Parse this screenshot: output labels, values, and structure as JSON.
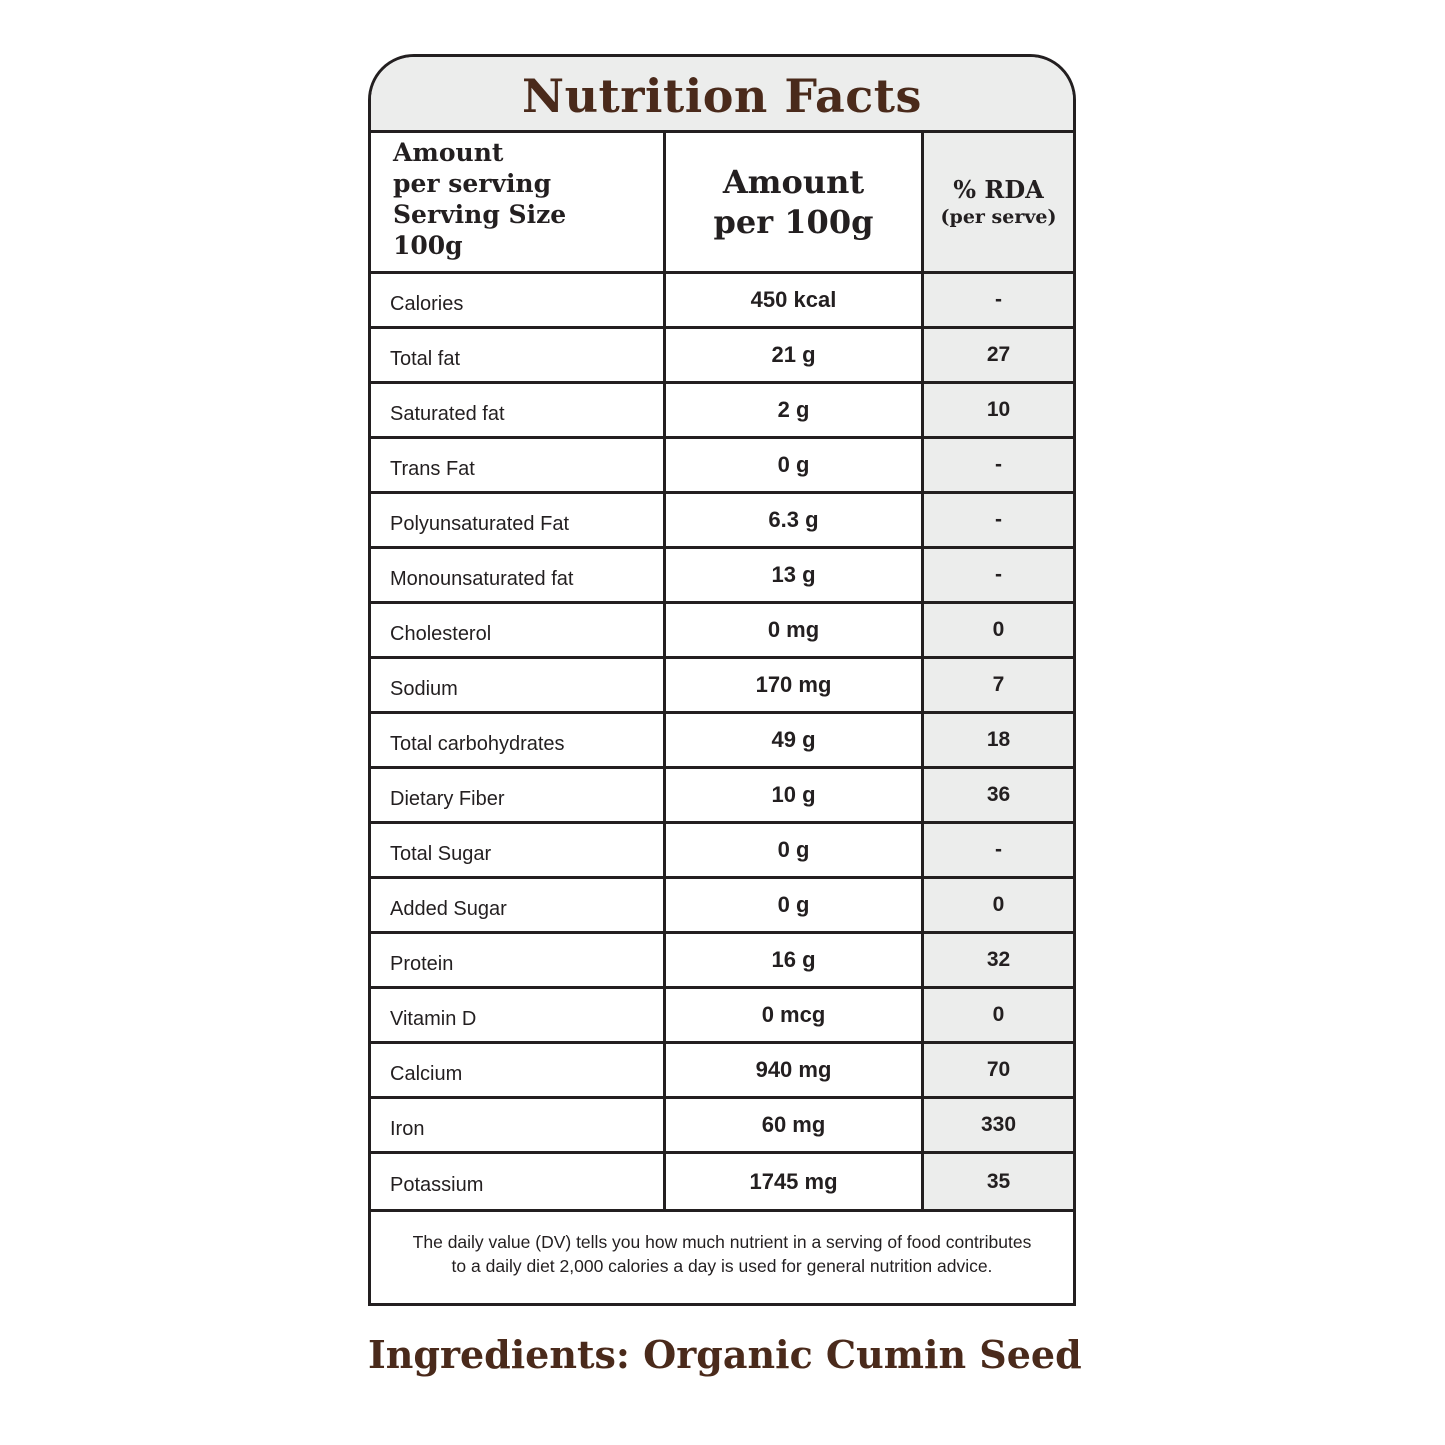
{
  "label": {
    "title": "Nutrition Facts",
    "header": {
      "col1_lines": [
        "Amount",
        "per serving",
        "Serving Size",
        "100g"
      ],
      "col2_lines": [
        "Amount",
        "per 100g"
      ],
      "col3_title": "% RDA",
      "col3_subtitle": "(per serve)"
    },
    "rows": [
      {
        "nutrient": "Calories",
        "amount": "450 kcal",
        "rda": "-"
      },
      {
        "nutrient": "Total fat",
        "amount": "21 g",
        "rda": "27"
      },
      {
        "nutrient": "Saturated fat",
        "amount": "2 g",
        "rda": "10"
      },
      {
        "nutrient": "Trans Fat",
        "amount": "0 g",
        "rda": "-"
      },
      {
        "nutrient": "Polyunsaturated Fat",
        "amount": "6.3 g",
        "rda": "-"
      },
      {
        "nutrient": "Monounsaturated fat",
        "amount": "13 g",
        "rda": "-"
      },
      {
        "nutrient": "Cholesterol",
        "amount": "0 mg",
        "rda": "0"
      },
      {
        "nutrient": "Sodium",
        "amount": "170 mg",
        "rda": "7"
      },
      {
        "nutrient": "Total carbohydrates",
        "amount": "49 g",
        "rda": "18"
      },
      {
        "nutrient": "Dietary Fiber",
        "amount": "10 g",
        "rda": "36"
      },
      {
        "nutrient": "Total Sugar",
        "amount": "0 g",
        "rda": "-"
      },
      {
        "nutrient": "Added Sugar",
        "amount": "0 g",
        "rda": "0"
      },
      {
        "nutrient": "Protein",
        "amount": "16 g",
        "rda": "32"
      },
      {
        "nutrient": "Vitamin D",
        "amount": "0 mcg",
        "rda": "0"
      },
      {
        "nutrient": "Calcium",
        "amount": "940 mg",
        "rda": "70"
      },
      {
        "nutrient": "Iron",
        "amount": "60 mg",
        "rda": "330"
      },
      {
        "nutrient": "Potassium",
        "amount": "1745 mg",
        "rda": "35"
      }
    ],
    "footnote_lines": [
      "The daily value (DV) tells you how much nutrient in a serving of food contributes",
      "to a daily diet 2,000 calories a day is used for general nutrition advice."
    ]
  },
  "ingredients": "Ingredients: Organic Cumin Seed",
  "colors": {
    "title_brown": "#4a2a1b",
    "panel_grey": "#ecedec",
    "border": "#231f20"
  }
}
